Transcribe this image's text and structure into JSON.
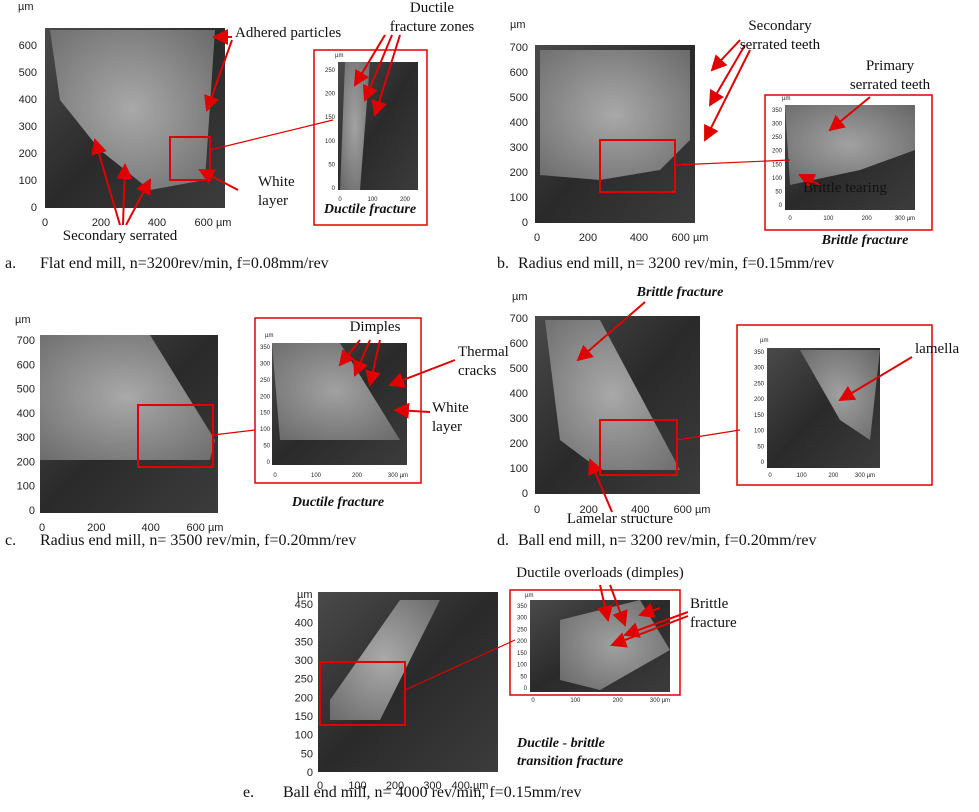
{
  "panels": [
    {
      "label": "a.",
      "caption": "Flat end mill, n=3200rev/min, f=0.08mm/rev",
      "main": {
        "unit": "µm",
        "yticks": [
          "600",
          "500",
          "400",
          "300",
          "200",
          "100",
          "0"
        ],
        "xticks": [
          "0",
          "200",
          "400",
          "600 µm"
        ]
      },
      "inset": {
        "unit": "µm",
        "yticks": [
          "250",
          "200",
          "150",
          "100",
          "50",
          "0"
        ],
        "xticks": [
          "0",
          "100",
          "200"
        ]
      },
      "annotations": [
        [
          "Adhered particles"
        ],
        [
          "Ductile",
          "fracture zones"
        ],
        [
          "White",
          "layer"
        ],
        [
          "Secondary serrated"
        ]
      ],
      "inset_title": [
        "Ductile fracture"
      ]
    },
    {
      "label": "b.",
      "caption": "Radius end mill, n= 3200 rev/min, f=0.15mm/rev",
      "main": {
        "unit": "µm",
        "yticks": [
          "700",
          "600",
          "500",
          "400",
          "300",
          "200",
          "100",
          "0"
        ],
        "xticks": [
          "0",
          "200",
          "400",
          "600 µm"
        ]
      },
      "inset": {
        "unit": "µm",
        "yticks": [
          "350",
          "300",
          "250",
          "200",
          "150",
          "100",
          "50",
          "0"
        ],
        "xticks": [
          "0",
          "100",
          "200",
          "300 µm"
        ]
      },
      "annotations": [
        [
          "Secondary",
          "serrated teeth"
        ],
        [
          "Primary",
          "serrated teeth"
        ],
        [
          "Brittle tearing"
        ]
      ],
      "inset_title": [
        "Brittle fracture"
      ]
    },
    {
      "label": "c.",
      "caption": "Radius end mill, n= 3500 rev/min, f=0.20mm/rev",
      "main": {
        "unit": "µm",
        "yticks": [
          "700",
          "600",
          "500",
          "400",
          "300",
          "200",
          "100",
          "0"
        ],
        "xticks": [
          "0",
          "200",
          "400",
          "600 µm"
        ]
      },
      "inset": {
        "unit": "µm",
        "yticks": [
          "350",
          "300",
          "250",
          "200",
          "150",
          "100",
          "50",
          "0"
        ],
        "xticks": [
          "0",
          "100",
          "200",
          "300 µm"
        ]
      },
      "annotations": [
        [
          "Dimples"
        ],
        [
          "Thermal",
          "cracks"
        ],
        [
          "White",
          "layer"
        ]
      ],
      "inset_title": [
        "Ductile fracture"
      ]
    },
    {
      "label": "d.",
      "caption": "Ball end mill, n= 3200 rev/min, f=0.20mm/rev",
      "main": {
        "unit": "µm",
        "yticks": [
          "700",
          "600",
          "500",
          "400",
          "300",
          "200",
          "100",
          "0"
        ],
        "xticks": [
          "0",
          "200",
          "400",
          "600 µm"
        ]
      },
      "inset": {
        "unit": "µm",
        "yticks": [
          "350",
          "300",
          "250",
          "200",
          "150",
          "100",
          "50",
          "0"
        ],
        "xticks": [
          "0",
          "100",
          "200",
          "300 µm"
        ]
      },
      "annotations": [
        [
          "Brittle fracture"
        ],
        [
          "lamella"
        ],
        [
          "Lamelar structure"
        ]
      ]
    },
    {
      "label": "e.",
      "caption": "Ball end mill, n= 4000 rev/min, f=0.15mm/rev",
      "main": {
        "unit": "µm",
        "yticks": [
          "450",
          "400",
          "350",
          "300",
          "250",
          "200",
          "150",
          "100",
          "50",
          "0"
        ],
        "xticks": [
          "0",
          "100",
          "200",
          "300",
          "400 µm"
        ]
      },
      "inset": {
        "unit": "µm",
        "yticks": [
          "350",
          "300",
          "250",
          "200",
          "150",
          "100",
          "50",
          "0"
        ],
        "xticks": [
          "0",
          "100",
          "200",
          "300 µm"
        ]
      },
      "annotations": [
        [
          "Ductile overloads (dimples)"
        ],
        [
          "Brittle",
          "fracture"
        ]
      ],
      "inset_title": [
        "Ductile - brittle",
        "transition fracture"
      ]
    }
  ]
}
